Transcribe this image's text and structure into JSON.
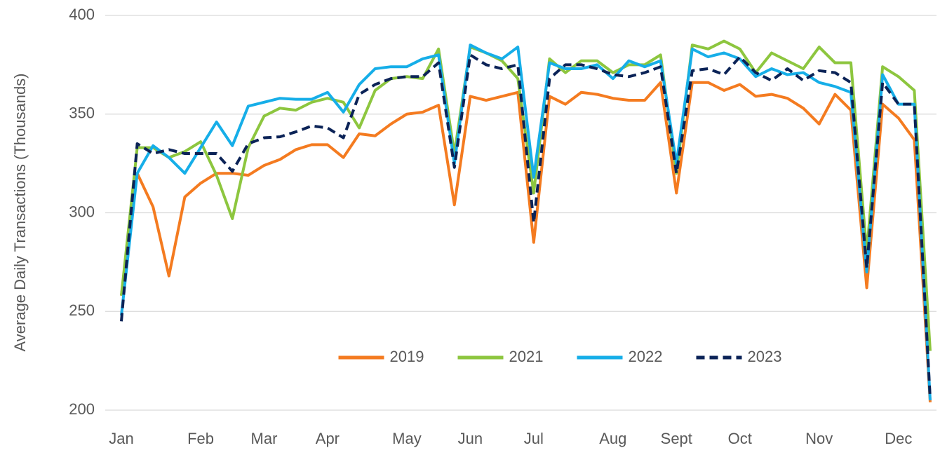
{
  "chart_data": {
    "type": "line",
    "y_label": "Average Daily Transactions (Thousands)",
    "categories": [
      "Jan",
      null,
      null,
      null,
      null,
      "Feb",
      null,
      null,
      null,
      "Mar",
      null,
      null,
      null,
      "Apr",
      null,
      null,
      null,
      null,
      "May",
      null,
      null,
      null,
      "Jun",
      null,
      null,
      null,
      "Jul",
      null,
      null,
      null,
      null,
      "Aug",
      null,
      null,
      null,
      "Sept",
      null,
      null,
      null,
      "Oct",
      null,
      null,
      null,
      null,
      "Nov",
      null,
      null,
      null,
      null,
      "Dec",
      null,
      null
    ],
    "series": [
      {
        "name": "2019",
        "color": "#f47b20",
        "style": "solid",
        "values": [
          258,
          320,
          303,
          268,
          308,
          315,
          320,
          320,
          319,
          324,
          327,
          332,
          334.5,
          334.5,
          328,
          340,
          339,
          345,
          350,
          351,
          354.5,
          304,
          359,
          357,
          359,
          361,
          285,
          359,
          355,
          361,
          360,
          358,
          357,
          357,
          366,
          310,
          366,
          366,
          362,
          365,
          359,
          360,
          358,
          353,
          345,
          360,
          352,
          262,
          355,
          348,
          337,
          204
        ]
      },
      {
        "name": "2021",
        "color": "#8dc63f",
        "style": "solid",
        "values": [
          258,
          333,
          333,
          328,
          331,
          336,
          319,
          297,
          333,
          349,
          353,
          352,
          356,
          358,
          356,
          343,
          362,
          368,
          369,
          368,
          383,
          330,
          384,
          381,
          377,
          368,
          310,
          378,
          371,
          377,
          377,
          371,
          375,
          375,
          380,
          320,
          385,
          383,
          387,
          383,
          371,
          381,
          377,
          373,
          384,
          376,
          376,
          280,
          374,
          369,
          362,
          230
        ]
      },
      {
        "name": "2022",
        "color": "#16aee8",
        "style": "solid",
        "values": [
          248,
          320,
          334,
          328,
          320,
          333,
          346,
          334,
          354,
          356,
          358,
          357.5,
          357.5,
          361,
          351,
          365,
          373,
          374,
          374,
          378,
          380,
          325,
          385,
          381,
          378,
          384,
          318,
          376,
          373,
          373,
          375,
          368,
          377,
          374,
          377,
          325,
          383,
          379,
          381,
          378,
          369,
          373,
          370,
          371,
          366,
          364,
          361,
          270,
          370,
          355,
          355,
          205
        ]
      },
      {
        "name": "2023",
        "color": "#0b2357",
        "style": "dashed",
        "values": [
          245,
          335,
          330,
          332,
          330,
          330,
          330,
          321,
          335,
          338,
          338.5,
          341,
          344,
          343,
          338,
          360,
          365,
          368,
          369,
          369,
          376,
          323,
          380,
          375,
          373,
          375,
          295,
          368,
          375,
          375,
          373,
          370,
          369,
          371,
          374,
          320,
          372,
          373,
          370,
          379,
          371,
          367,
          373,
          367,
          372,
          371,
          366,
          272,
          366,
          355,
          355,
          206
        ]
      }
    ],
    "ylim": [
      200,
      400
    ],
    "yticks": [
      200,
      250,
      300,
      350,
      400
    ],
    "grid": true,
    "legend": "lower center"
  }
}
